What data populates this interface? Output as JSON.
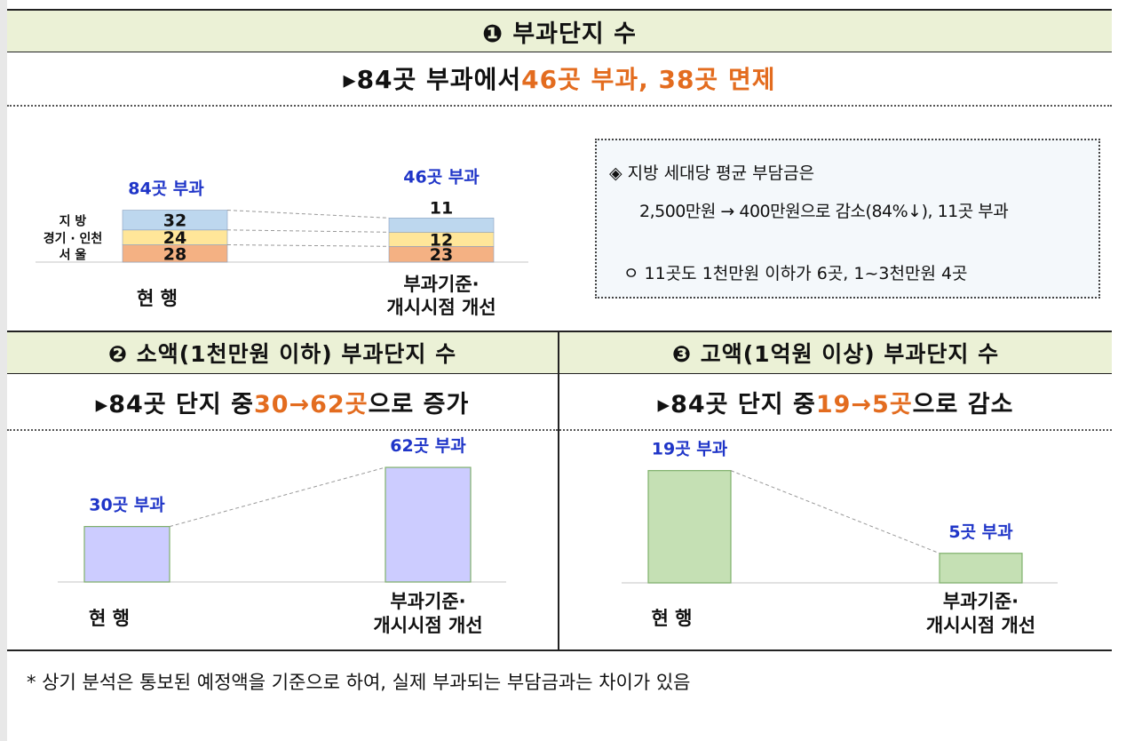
{
  "section1": {
    "title": "❶  부과단지  수",
    "summary_pre": "▸84곳  부과에서 ",
    "summary_hl": "46곳  부과,  38곳  면제",
    "note": {
      "line1": "◈  지방  세대당  평균  부담금은",
      "line2": "2,500만원 → 400만원으로 감소(84%↓), 11곳 부과",
      "line3": "ㅇ  11곳도  1천만원  이하가  6곳,  1~3천만원  4곳"
    }
  },
  "section2": {
    "title": "❷ 소액(1천만원  이하)  부과단지  수",
    "summary_pre": "▸84곳  단지  중 ",
    "summary_hl": "30→62곳",
    "summary_post": "으로  증가"
  },
  "section3": {
    "title": "❸ 고액(1억원  이상)  부과단지  수",
    "summary_pre": "▸84곳  단지  중 ",
    "summary_hl": "19→5곳",
    "summary_post": "으로  감소"
  },
  "footnote": "*  상기  분석은  통보된  예정액을  기준으로  하여,  실제  부과되는  부담금과는  차이가  있음",
  "colors": {
    "band": "#ebf1d6",
    "highlight": "#e36c1f",
    "label_blue": "#1f35c8",
    "jibang": "#bdd7ee",
    "gyeonggi": "#ffe699",
    "seoul": "#f4b183",
    "small_bar": "#ccccff",
    "large_bar": "#c5e0b4"
  },
  "chart_data": [
    {
      "type": "bar",
      "stacked": true,
      "categories": [
        "현  행",
        "부과기준·\n개시시점  개선"
      ],
      "series": [
        {
          "name": "서  울",
          "values": [
            28,
            23
          ]
        },
        {
          "name": "경기 · 인천",
          "values": [
            24,
            12
          ]
        },
        {
          "name": "지  방",
          "values": [
            32,
            11
          ]
        }
      ],
      "totals_labels": [
        "84곳  부과",
        "46곳  부과"
      ]
    },
    {
      "type": "bar",
      "categories": [
        "현  행",
        "부과기준·\n개시시점  개선"
      ],
      "values": [
        30,
        62
      ],
      "value_labels": [
        "30곳  부과",
        "62곳  부과"
      ]
    },
    {
      "type": "bar",
      "categories": [
        "현  행",
        "부과기준·\n개시시점  개선"
      ],
      "values": [
        19,
        5
      ],
      "value_labels": [
        "19곳  부과",
        "5곳  부과"
      ]
    }
  ]
}
